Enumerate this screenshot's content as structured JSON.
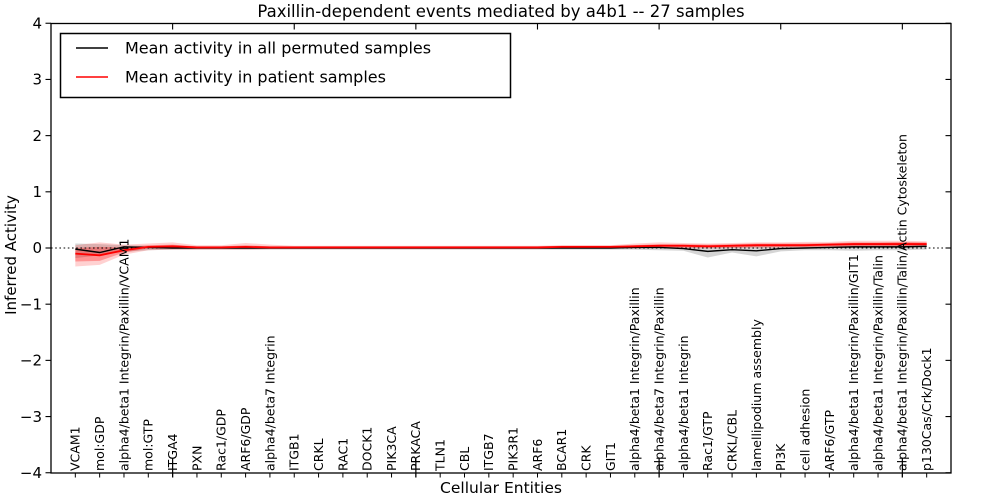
{
  "figure": {
    "background": "#ffffff"
  },
  "colors": {
    "patient": "#ff0000",
    "permuted": "#000000",
    "frame": "#000000"
  },
  "chart_data": {
    "type": "line",
    "title": "Paxillin-dependent events mediated by a4b1 -- 27 samples",
    "xlabel": "Cellular Entities",
    "ylabel": "Inferred Activity",
    "ylim": [
      -4,
      4
    ],
    "xlim": [
      0,
      37
    ],
    "grid": false,
    "legend_position": "upper left",
    "ytick_values": [
      4,
      3,
      2,
      1,
      0,
      -1,
      -2,
      -3,
      -4
    ],
    "ytick_labels": [
      "4",
      "3",
      "2",
      "1",
      "0",
      "−1",
      "−2",
      "−3",
      "−4"
    ],
    "top_tick_values": [
      5,
      10,
      15,
      20,
      25,
      30,
      35
    ],
    "bottom_major_tick_values": [
      5,
      15,
      25,
      35
    ],
    "zero_line": 0,
    "categories": [
      "VCAM1",
      "mol:GDP",
      "alpha4/beta1 Integrin/Paxillin/VCAM1",
      "mol:GTP",
      "ITGA4",
      "PXN",
      "Rac1/GDP",
      "ARF6/GDP",
      "alpha4/beta7 Integrin",
      "ITGB1",
      "CRKL",
      "RAC1",
      "DOCK1",
      "PIK3CA",
      "PRKACA",
      "TLN1",
      "CBL",
      "ITGB7",
      "PIK3R1",
      "ARF6",
      "BCAR1",
      "CRK",
      "GIT1",
      "alpha4/beta1 Integrin/Paxillin",
      "alpha4/beta7 Integrin/Paxillin",
      "alpha4/beta1 Integrin",
      "Rac1/GTP",
      "CRKL/CBL",
      "lamellipodium assembly",
      "PI3K",
      "cell adhesion",
      "ARF6/GTP",
      "alpha4/beta1 Integrin/Paxillin/GIT1",
      "alpha4/beta1 Integrin/Paxillin/Talin",
      "alpha4/beta1 Integrin/Paxillin/Talin/Actin Cytoskeleton",
      "p130Cas/Crk/Dock1"
    ],
    "series": [
      {
        "name": "Mean activity in all permuted samples",
        "color": "#000000",
        "band_color": "#888888",
        "band_opacity": 0.35,
        "values": [
          -0.02,
          -0.08,
          0.02,
          0.01,
          0.0,
          0.0,
          0.0,
          0.0,
          0.0,
          0.0,
          0.0,
          0.0,
          0.0,
          0.0,
          0.0,
          0.0,
          0.0,
          0.0,
          0.0,
          0.0,
          0.0,
          0.0,
          0.0,
          0.01,
          0.01,
          -0.01,
          -0.06,
          -0.03,
          -0.05,
          -0.01,
          0.0,
          0.01,
          0.02,
          0.02,
          0.02,
          0.03
        ],
        "band_low": [
          -0.18,
          -0.13,
          -0.07,
          -0.04,
          -0.03,
          -0.03,
          -0.03,
          -0.03,
          -0.03,
          -0.03,
          -0.03,
          -0.03,
          -0.03,
          -0.03,
          -0.03,
          -0.03,
          -0.03,
          -0.03,
          -0.03,
          -0.03,
          -0.03,
          -0.03,
          -0.03,
          -0.03,
          -0.04,
          -0.05,
          -0.17,
          -0.08,
          -0.15,
          -0.06,
          -0.04,
          -0.04,
          -0.05,
          -0.04,
          -0.04,
          -0.03
        ],
        "band_high": [
          0.08,
          0.07,
          0.05,
          0.04,
          0.03,
          0.03,
          0.03,
          0.03,
          0.03,
          0.03,
          0.03,
          0.03,
          0.03,
          0.03,
          0.03,
          0.03,
          0.03,
          0.03,
          0.03,
          0.03,
          0.03,
          0.03,
          0.03,
          0.04,
          0.04,
          0.04,
          0.03,
          0.04,
          0.04,
          0.04,
          0.04,
          0.05,
          0.06,
          0.06,
          0.07,
          0.07
        ]
      },
      {
        "name": "Mean activity in patient samples",
        "color": "#ff0000",
        "band_color": "#ff0000",
        "band_opacity": 0.18,
        "inner_opacity": 0.3,
        "values": [
          -0.1,
          -0.13,
          -0.04,
          0.02,
          0.03,
          0.01,
          0.01,
          0.02,
          0.01,
          0.01,
          0.01,
          0.01,
          0.01,
          0.01,
          0.01,
          0.01,
          0.01,
          0.01,
          0.01,
          0.01,
          0.02,
          0.02,
          0.02,
          0.03,
          0.04,
          0.04,
          0.03,
          0.04,
          0.05,
          0.05,
          0.05,
          0.06,
          0.07,
          0.07,
          0.07,
          0.07
        ],
        "band_low": [
          -0.33,
          -0.3,
          -0.12,
          -0.04,
          -0.03,
          -0.03,
          -0.03,
          -0.03,
          -0.02,
          -0.02,
          -0.02,
          -0.02,
          -0.02,
          -0.02,
          -0.02,
          -0.02,
          -0.02,
          -0.02,
          -0.02,
          -0.02,
          -0.01,
          -0.01,
          -0.01,
          -0.01,
          0.0,
          0.0,
          -0.01,
          0.0,
          0.0,
          0.0,
          0.0,
          0.0,
          0.01,
          0.01,
          0.01,
          0.02
        ],
        "band_high": [
          0.05,
          0.1,
          0.06,
          0.08,
          0.1,
          0.05,
          0.05,
          0.09,
          0.06,
          0.04,
          0.04,
          0.04,
          0.04,
          0.04,
          0.04,
          0.04,
          0.04,
          0.04,
          0.04,
          0.04,
          0.05,
          0.05,
          0.05,
          0.08,
          0.1,
          0.09,
          0.08,
          0.09,
          0.1,
          0.1,
          0.11,
          0.11,
          0.13,
          0.13,
          0.13,
          0.12
        ],
        "inner_low": [
          -0.24,
          -0.23,
          -0.08,
          -0.01,
          0.0,
          -0.01,
          -0.01,
          -0.01,
          -0.01,
          -0.01,
          -0.01,
          -0.01,
          -0.01,
          -0.01,
          -0.01,
          -0.01,
          -0.01,
          -0.01,
          -0.01,
          -0.01,
          0.0,
          0.0,
          0.0,
          0.01,
          0.01,
          0.01,
          0.01,
          0.01,
          0.02,
          0.02,
          0.02,
          0.03,
          0.03,
          0.03,
          0.03,
          0.04
        ],
        "inner_high": [
          0.0,
          0.02,
          0.01,
          0.05,
          0.06,
          0.03,
          0.03,
          0.05,
          0.03,
          0.03,
          0.03,
          0.03,
          0.03,
          0.03,
          0.03,
          0.03,
          0.03,
          0.03,
          0.03,
          0.03,
          0.04,
          0.04,
          0.04,
          0.05,
          0.07,
          0.07,
          0.06,
          0.07,
          0.08,
          0.08,
          0.08,
          0.09,
          0.1,
          0.1,
          0.11,
          0.1
        ]
      }
    ]
  }
}
